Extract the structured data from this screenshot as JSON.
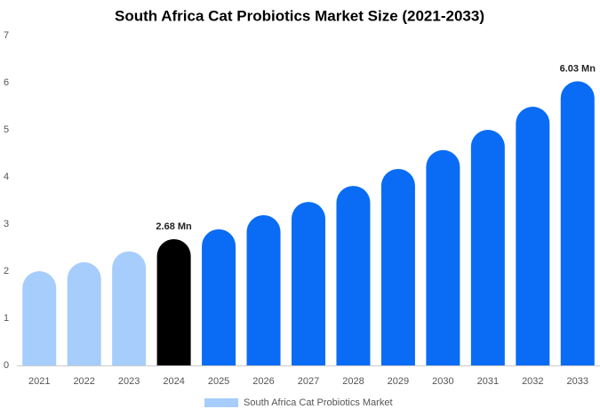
{
  "chart_data": {
    "type": "bar",
    "title": "South Africa Cat Probiotics Market Size (2021-2033)",
    "categories": [
      "2021",
      "2022",
      "2023",
      "2024",
      "2025",
      "2026",
      "2027",
      "2028",
      "2029",
      "2030",
      "2031",
      "2032",
      "2033"
    ],
    "series": [
      {
        "name": "South Africa Cat Probiotics Market",
        "color": "#a6cdfb",
        "values": [
          2.0,
          2.19,
          2.42,
          2.68,
          2.89,
          3.19,
          3.47,
          3.81,
          4.17,
          4.57,
          5.0,
          5.49,
          6.03
        ],
        "value_labels": [
          null,
          null,
          null,
          "2.68 Mn",
          null,
          null,
          null,
          null,
          null,
          null,
          null,
          null,
          "6.03 Mn"
        ],
        "colors": [
          "#a6cdfb",
          "#a6cdfb",
          "#a6cdfb",
          "#000000",
          "#0a6cf5",
          "#0a6cf5",
          "#0a6cf5",
          "#0a6cf5",
          "#0a6cf5",
          "#0a6cf5",
          "#0a6cf5",
          "#0a6cf5",
          "#0a6cf5"
        ]
      }
    ],
    "ylim": [
      0,
      7
    ],
    "yticks": [
      0,
      1,
      2,
      3,
      4,
      5,
      6,
      7
    ],
    "grid": false,
    "legend": "bottom"
  }
}
